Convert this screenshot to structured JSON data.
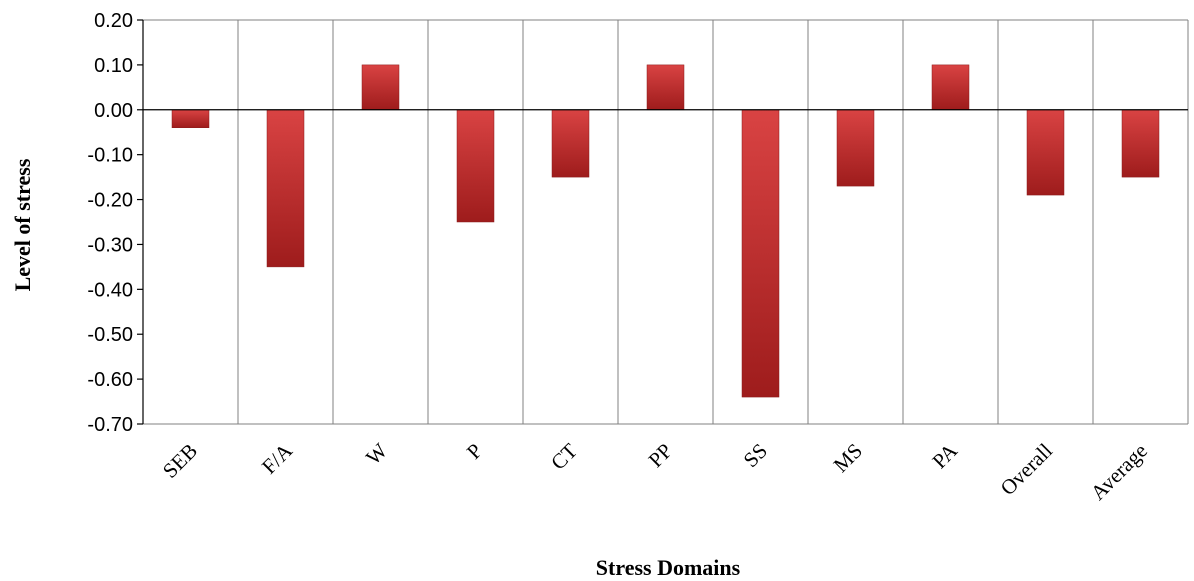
{
  "chart_data": {
    "type": "bar",
    "categories": [
      "SEB",
      "F/A",
      "W",
      "P",
      "CT",
      "PP",
      "SS",
      "MS",
      "PA",
      "Overall",
      "Average"
    ],
    "values": [
      -0.04,
      -0.35,
      0.1,
      -0.25,
      -0.15,
      0.1,
      -0.64,
      -0.17,
      0.1,
      -0.19,
      -0.15
    ],
    "ylim": [
      -0.7,
      0.2
    ],
    "yticks": [
      "0.20",
      "0.10",
      "0.00",
      "-0.10",
      "-0.20",
      "-0.30",
      "-0.40",
      "-0.50",
      "-0.60",
      "-0.70"
    ],
    "xlabel": "Stress Domains",
    "ylabel": "Level of stress",
    "grid": "vertical category separators",
    "bar_color_light": "#d94343",
    "bar_color_dark": "#9e1c1c",
    "axis_color": "#000000",
    "grid_color": "#808080"
  }
}
